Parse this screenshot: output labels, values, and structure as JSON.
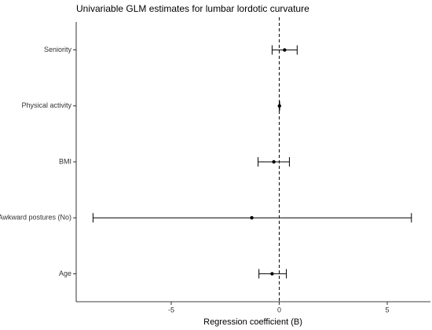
{
  "chart_data": {
    "type": "forest",
    "title": "Univariable GLM estimates for lumbar lordotic curvature",
    "x_label": "Regression coefficient (B)",
    "categories": [
      "Seniority",
      "Physical activity",
      "BMI",
      "Awkward postures (No)",
      "Age"
    ],
    "values": [
      0.25,
      0.01,
      -0.25,
      -1.27,
      -0.33
    ],
    "lower": [
      -0.33,
      0.0,
      -0.98,
      -8.62,
      -0.94
    ],
    "upper": [
      0.83,
      0.02,
      0.47,
      6.12,
      0.33
    ],
    "xlim": [
      -9.4,
      7
    ],
    "xticks": [
      -5,
      0,
      5
    ],
    "reference_line": 0,
    "color": "#000000"
  }
}
